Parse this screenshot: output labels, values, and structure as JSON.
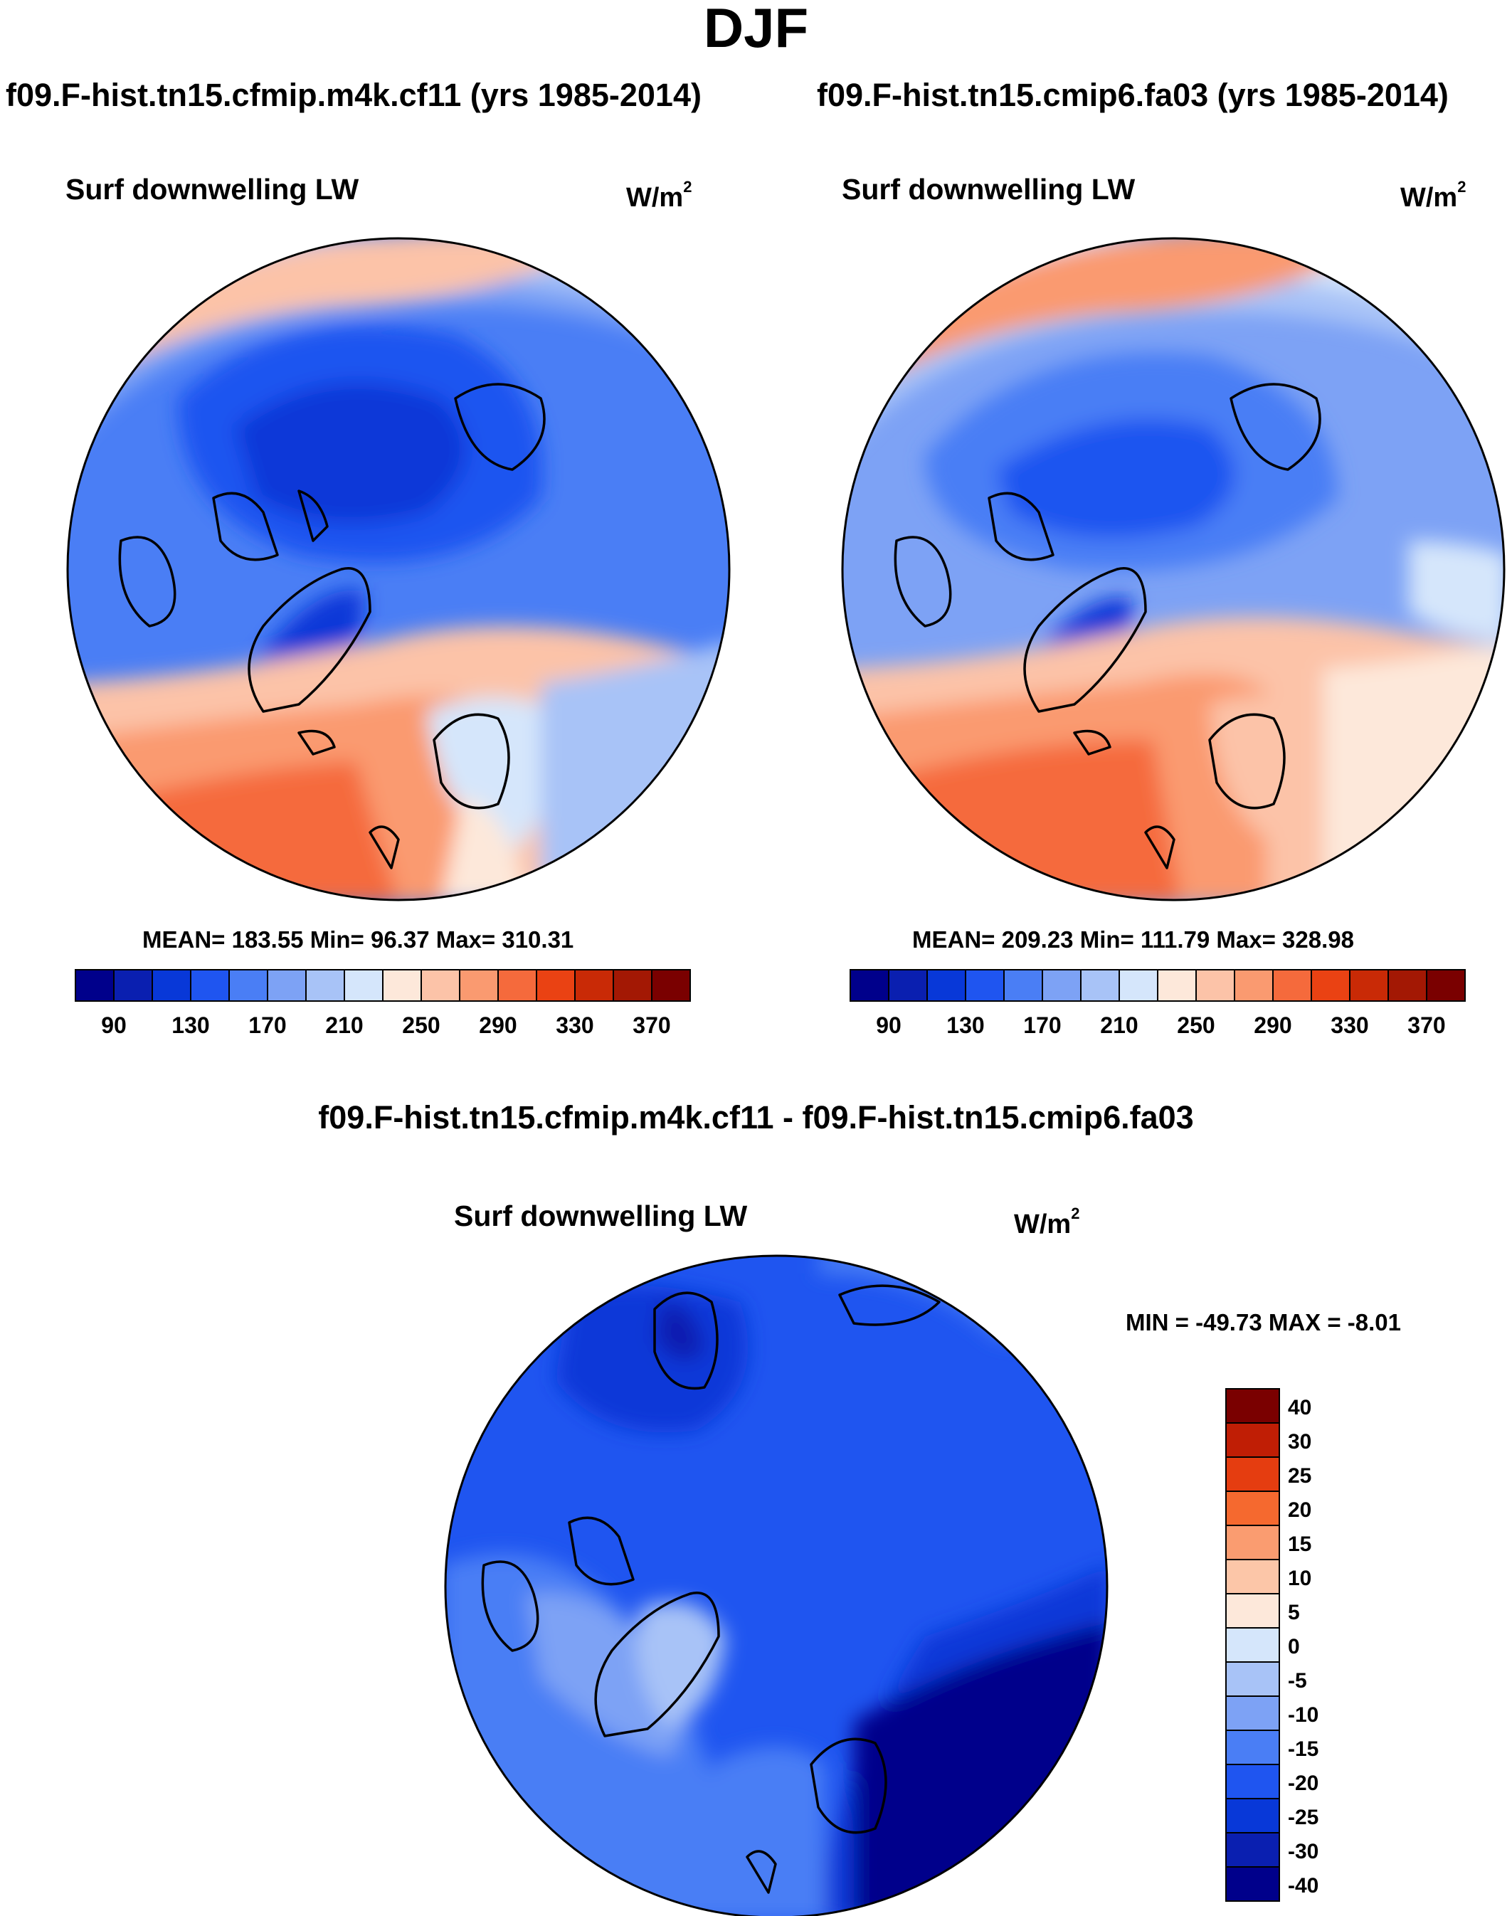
{
  "title": "DJF",
  "left_case": "f09.F-hist.tn15.cfmip.m4k.cf11 (yrs 1985-2014)",
  "right_case": "f09.F-hist.tn15.cmip6.fa03 (yrs 1985-2014)",
  "diff_title": "f09.F-hist.tn15.cfmip.m4k.cf11 - f09.F-hist.tn15.cmip6.fa03",
  "panels": {
    "left": {
      "variable": "Surf downwelling LW",
      "units_base": "W/m",
      "units_exp": "2",
      "stats": "MEAN= 183.55  Min=  96.37  Max= 310.31"
    },
    "right": {
      "variable": "Surf downwelling LW",
      "units_base": "W/m",
      "units_exp": "2",
      "stats": "MEAN= 209.23  Min= 111.79  Max= 328.98"
    },
    "diff": {
      "variable": "Surf downwelling LW",
      "units_base": "W/m",
      "units_exp": "2",
      "stats": "MIN = -49.73 MAX =  -8.01"
    }
  },
  "colorbar_abs": {
    "colors": [
      "#00008b",
      "#0a1fb0",
      "#0838d8",
      "#1f55f0",
      "#4a7ef5",
      "#7da2f5",
      "#a8c3f7",
      "#d5e6fb",
      "#fde8da",
      "#fcc3a8",
      "#fa9a70",
      "#f56a3c",
      "#ea4213",
      "#c92a06",
      "#a31804",
      "#7a0000"
    ],
    "tick_labels": [
      "90",
      "130",
      "170",
      "210",
      "250",
      "290",
      "330",
      "370"
    ]
  },
  "colorbar_diff": {
    "colors": [
      "#7a0000",
      "#c01e05",
      "#e53d10",
      "#f5692f",
      "#fa9c70",
      "#fcc6a8",
      "#fde8da",
      "#d5e6fb",
      "#a8c3f7",
      "#7da2f5",
      "#4a7ef5",
      "#1f55f0",
      "#0838d8",
      "#0a1fb0",
      "#00008b"
    ],
    "tick_labels": [
      "40",
      "30",
      "25",
      "20",
      "15",
      "10",
      "5",
      "0",
      "-5",
      "-10",
      "-15",
      "-20",
      "-25",
      "-30",
      "-40"
    ]
  }
}
